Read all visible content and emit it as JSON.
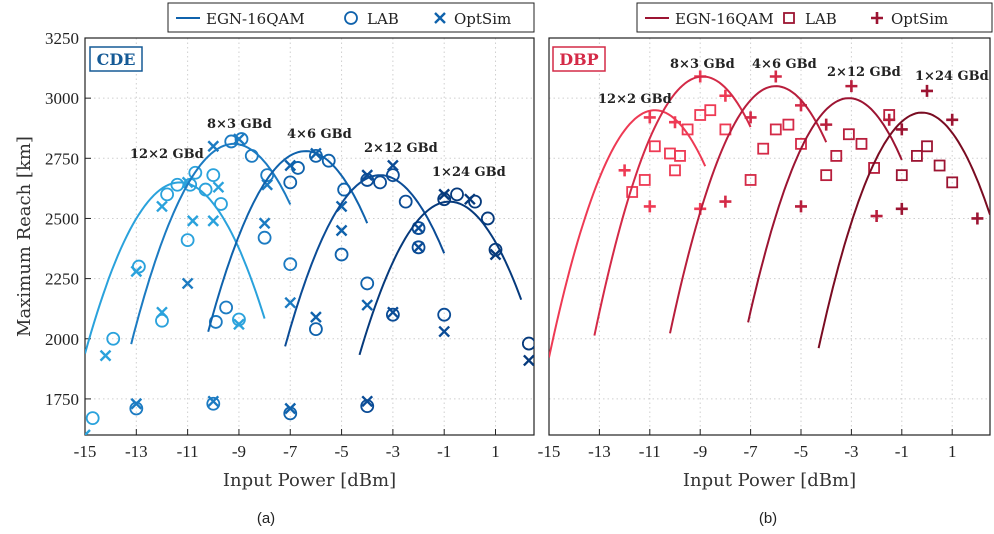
{
  "chart_data": [
    {
      "type": "line",
      "panel_tag": "CDE",
      "caption": "(a)",
      "xlabel": "Input Power [dBm]",
      "ylabel": "Maximum Reach [km]",
      "xlim": [
        -15,
        2.5
      ],
      "ylim": [
        1600,
        3250
      ],
      "xticks": [
        -15,
        -13,
        -11,
        -9,
        -7,
        -5,
        -3,
        -1,
        1
      ],
      "yticks": [
        1750,
        2000,
        2250,
        2500,
        2750,
        3000,
        3250
      ],
      "grid": true,
      "legend_position": "top",
      "legend": [
        "EGN-16QAM",
        "LAB",
        "OptSim"
      ],
      "series": [
        {
          "config": "12×2 GBd",
          "color": "#2aa2dc",
          "egn": {
            "peak_x": -11.3,
            "peak_y": 2650,
            "x_range": [
              -15,
              -8
            ]
          },
          "lab": [
            [
              -14.7,
              1670
            ],
            [
              -13.9,
              2000
            ],
            [
              -12.9,
              2300
            ],
            [
              -12,
              2075
            ],
            [
              -11.8,
              2600
            ],
            [
              -11.4,
              2640
            ],
            [
              -11,
              2410
            ],
            [
              -10.9,
              2640
            ],
            [
              -10.7,
              2690
            ],
            [
              -10.3,
              2620
            ],
            [
              -10,
              2680
            ],
            [
              -9.7,
              2560
            ],
            [
              -9,
              2080
            ]
          ],
          "optsim": [
            [
              -15,
              1600
            ],
            [
              -14.2,
              1930
            ],
            [
              -13,
              2280
            ],
            [
              -12,
              2110
            ],
            [
              -12,
              2550
            ],
            [
              -11,
              2650
            ],
            [
              -10.8,
              2490
            ],
            [
              -10,
              2490
            ],
            [
              -9.8,
              2630
            ],
            [
              -9,
              2060
            ]
          ]
        },
        {
          "config": "8×3 GBd",
          "color": "#1c7bc2",
          "egn": {
            "peak_x": -9.2,
            "peak_y": 2810,
            "x_range": [
              -13.2,
              -7
            ]
          },
          "lab": [
            [
              -13,
              1710
            ],
            [
              -10,
              1730
            ],
            [
              -9.9,
              2070
            ],
            [
              -9.5,
              2130
            ],
            [
              -9.3,
              2820
            ],
            [
              -8.9,
              2830
            ],
            [
              -8.5,
              2760
            ],
            [
              -8,
              2420
            ],
            [
              -7.9,
              2680
            ],
            [
              -7,
              2310
            ]
          ],
          "optsim": [
            [
              -13,
              1730
            ],
            [
              -11,
              2230
            ],
            [
              -10,
              2800
            ],
            [
              -10,
              1740
            ],
            [
              -9,
              2830
            ],
            [
              -8,
              2480
            ],
            [
              -7.9,
              2640
            ],
            [
              -7,
              2150
            ]
          ]
        },
        {
          "config": "4×6 GBd",
          "color": "#0f62ac",
          "egn": {
            "peak_x": -6.4,
            "peak_y": 2780,
            "x_range": [
              -10.2,
              -4
            ]
          },
          "lab": [
            [
              -7,
              1690
            ],
            [
              -7,
              2650
            ],
            [
              -6.7,
              2710
            ],
            [
              -6,
              2040
            ],
            [
              -6,
              2760
            ],
            [
              -5.5,
              2740
            ],
            [
              -5,
              2350
            ],
            [
              -4.9,
              2620
            ],
            [
              -4,
              2230
            ]
          ],
          "optsim": [
            [
              -7,
              1710
            ],
            [
              -7,
              2720
            ],
            [
              -6,
              2090
            ],
            [
              -6,
              2770
            ],
            [
              -5,
              2450
            ],
            [
              -5,
              2550
            ],
            [
              -4,
              2140
            ]
          ]
        },
        {
          "config": "2×12 GBd",
          "color": "#0b4c96",
          "egn": {
            "peak_x": -3.5,
            "peak_y": 2680,
            "x_range": [
              -7.2,
              -1
            ]
          },
          "lab": [
            [
              -4,
              1720
            ],
            [
              -4,
              2660
            ],
            [
              -3.5,
              2650
            ],
            [
              -3,
              2100
            ],
            [
              -3,
              2680
            ],
            [
              -2.5,
              2570
            ],
            [
              -2,
              2380
            ],
            [
              -2,
              2460
            ],
            [
              -1,
              2100
            ]
          ],
          "optsim": [
            [
              -4,
              1740
            ],
            [
              -4,
              2680
            ],
            [
              -3,
              2110
            ],
            [
              -3,
              2720
            ],
            [
              -2,
              2380
            ],
            [
              -2,
              2460
            ],
            [
              -1,
              2030
            ]
          ]
        },
        {
          "config": "1×24 GBd",
          "color": "#063a7c",
          "egn": {
            "peak_x": -0.8,
            "peak_y": 2570,
            "x_range": [
              -4.3,
              2
            ]
          },
          "lab": [
            [
              -1,
              2580
            ],
            [
              -0.5,
              2600
            ],
            [
              0.2,
              2570
            ],
            [
              0.7,
              2500
            ],
            [
              1,
              2370
            ],
            [
              2.3,
              1980
            ]
          ],
          "optsim": [
            [
              -1,
              2600
            ],
            [
              0,
              2580
            ],
            [
              1,
              2350
            ],
            [
              2.3,
              1910
            ]
          ]
        }
      ],
      "annotations": [
        "12×2 GBd",
        "8×3 GBd",
        "4×6 GBd",
        "2×12 GBd",
        "1×24 GBd"
      ]
    },
    {
      "type": "line",
      "panel_tag": "DBP",
      "caption": "(b)",
      "xlabel": "Input Power [dBm]",
      "xlim": [
        -15,
        2.5
      ],
      "ylim": [
        1600,
        3250
      ],
      "xticks": [
        -15,
        -13,
        -11,
        -9,
        -7,
        -5,
        -3,
        -1,
        1
      ],
      "grid": true,
      "legend_position": "top",
      "legend": [
        "EGN-16QAM",
        "LAB",
        "OptSim"
      ],
      "series": [
        {
          "config": "12×2 GBd",
          "color": "#ee3a54",
          "egn": {
            "peak_x": -10.8,
            "peak_y": 2950,
            "x_range": [
              -15,
              -8.8
            ]
          },
          "lab": [
            [
              -11.7,
              2610
            ],
            [
              -11.2,
              2660
            ],
            [
              -10.8,
              2800
            ],
            [
              -10.2,
              2770
            ],
            [
              -10,
              2700
            ],
            [
              -9.8,
              2760
            ],
            [
              -9.5,
              2870
            ],
            [
              -9,
              2930
            ],
            [
              -8.6,
              2950
            ],
            [
              -8,
              2870
            ]
          ],
          "optsim": [
            [
              -12,
              2700
            ],
            [
              -11,
              2550
            ],
            [
              -11,
              2920
            ],
            [
              -10,
              2900
            ],
            [
              -9,
              2540
            ],
            [
              -9,
              3090
            ],
            [
              -8,
              3010
            ]
          ]
        },
        {
          "config": "8×3 GBd",
          "color": "#d42a47",
          "egn": {
            "peak_x": -8.9,
            "peak_y": 3090,
            "x_range": [
              -13.2,
              -7
            ]
          },
          "lab": [
            [
              -7,
              2660
            ],
            [
              -6.5,
              2790
            ],
            [
              -6,
              2870
            ],
            [
              -5.5,
              2890
            ],
            [
              -5,
              2810
            ]
          ],
          "optsim": [
            [
              -8,
              2570
            ],
            [
              -7,
              2920
            ],
            [
              -6,
              3090
            ],
            [
              -5,
              2970
            ]
          ]
        },
        {
          "config": "4×6 GBd",
          "color": "#b81e3c",
          "egn": {
            "peak_x": -6,
            "peak_y": 3050,
            "x_range": [
              -10.2,
              -4
            ]
          },
          "lab": [
            [
              -4,
              2680
            ],
            [
              -3.6,
              2760
            ],
            [
              -3.1,
              2850
            ],
            [
              -2.6,
              2810
            ],
            [
              -2.1,
              2710
            ],
            [
              -1.5,
              2930
            ]
          ],
          "optsim": [
            [
              -5,
              2550
            ],
            [
              -4,
              2890
            ],
            [
              -3,
              3050
            ],
            [
              -2,
              2510
            ],
            [
              -1.5,
              2910
            ]
          ]
        },
        {
          "config": "2×12 GBd",
          "color": "#9c1432",
          "egn": {
            "peak_x": -3.1,
            "peak_y": 3000,
            "x_range": [
              -7.1,
              -1
            ]
          },
          "lab": [
            [
              -1,
              2680
            ],
            [
              -0.4,
              2760
            ],
            [
              0,
              2800
            ],
            [
              0.5,
              2720
            ],
            [
              1,
              2650
            ]
          ],
          "optsim": [
            [
              -1,
              2540
            ],
            [
              -1,
              2870
            ],
            [
              0,
              3030
            ],
            [
              1,
              2910
            ],
            [
              2,
              2500
            ]
          ]
        },
        {
          "config": "1×24 GBd",
          "color": "#7a0c22",
          "egn": {
            "peak_x": -0.2,
            "peak_y": 2940,
            "x_range": [
              -4.3,
              2.5
            ]
          },
          "lab": [],
          "optsim": []
        }
      ],
      "annotations": [
        "12×2 GBd",
        "8×3 GBd",
        "4×6 GBd",
        "2×12 GBd",
        "1×24 GBd"
      ]
    }
  ]
}
